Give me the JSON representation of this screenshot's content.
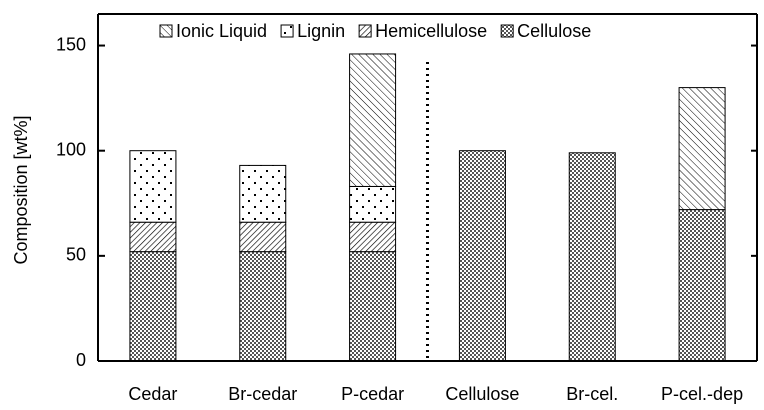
{
  "chart_data": {
    "type": "bar",
    "stacked": true,
    "y_label": "Composition [wt%]",
    "categories": [
      "Cedar",
      "Br-cedar",
      "P-cedar",
      "Cellulose",
      "Br-cel.",
      "P-cel.-dep"
    ],
    "series": [
      {
        "name": "Cellulose",
        "color": "#000000",
        "values": [
          52,
          52,
          52,
          100,
          99,
          72
        ]
      },
      {
        "name": "Hemicellulose",
        "color": "#000000",
        "values": [
          14,
          14,
          14,
          0,
          0,
          0
        ]
      },
      {
        "name": "Lignin",
        "color": "#000000",
        "values": [
          34,
          27,
          17,
          0,
          0,
          0
        ]
      },
      {
        "name": "Ionic Liquid",
        "color": "#000000",
        "values": [
          0,
          0,
          63,
          0,
          0,
          58
        ]
      }
    ],
    "ylim": [
      0,
      165
    ],
    "yticks": [
      0,
      50,
      100,
      150
    ]
  }
}
